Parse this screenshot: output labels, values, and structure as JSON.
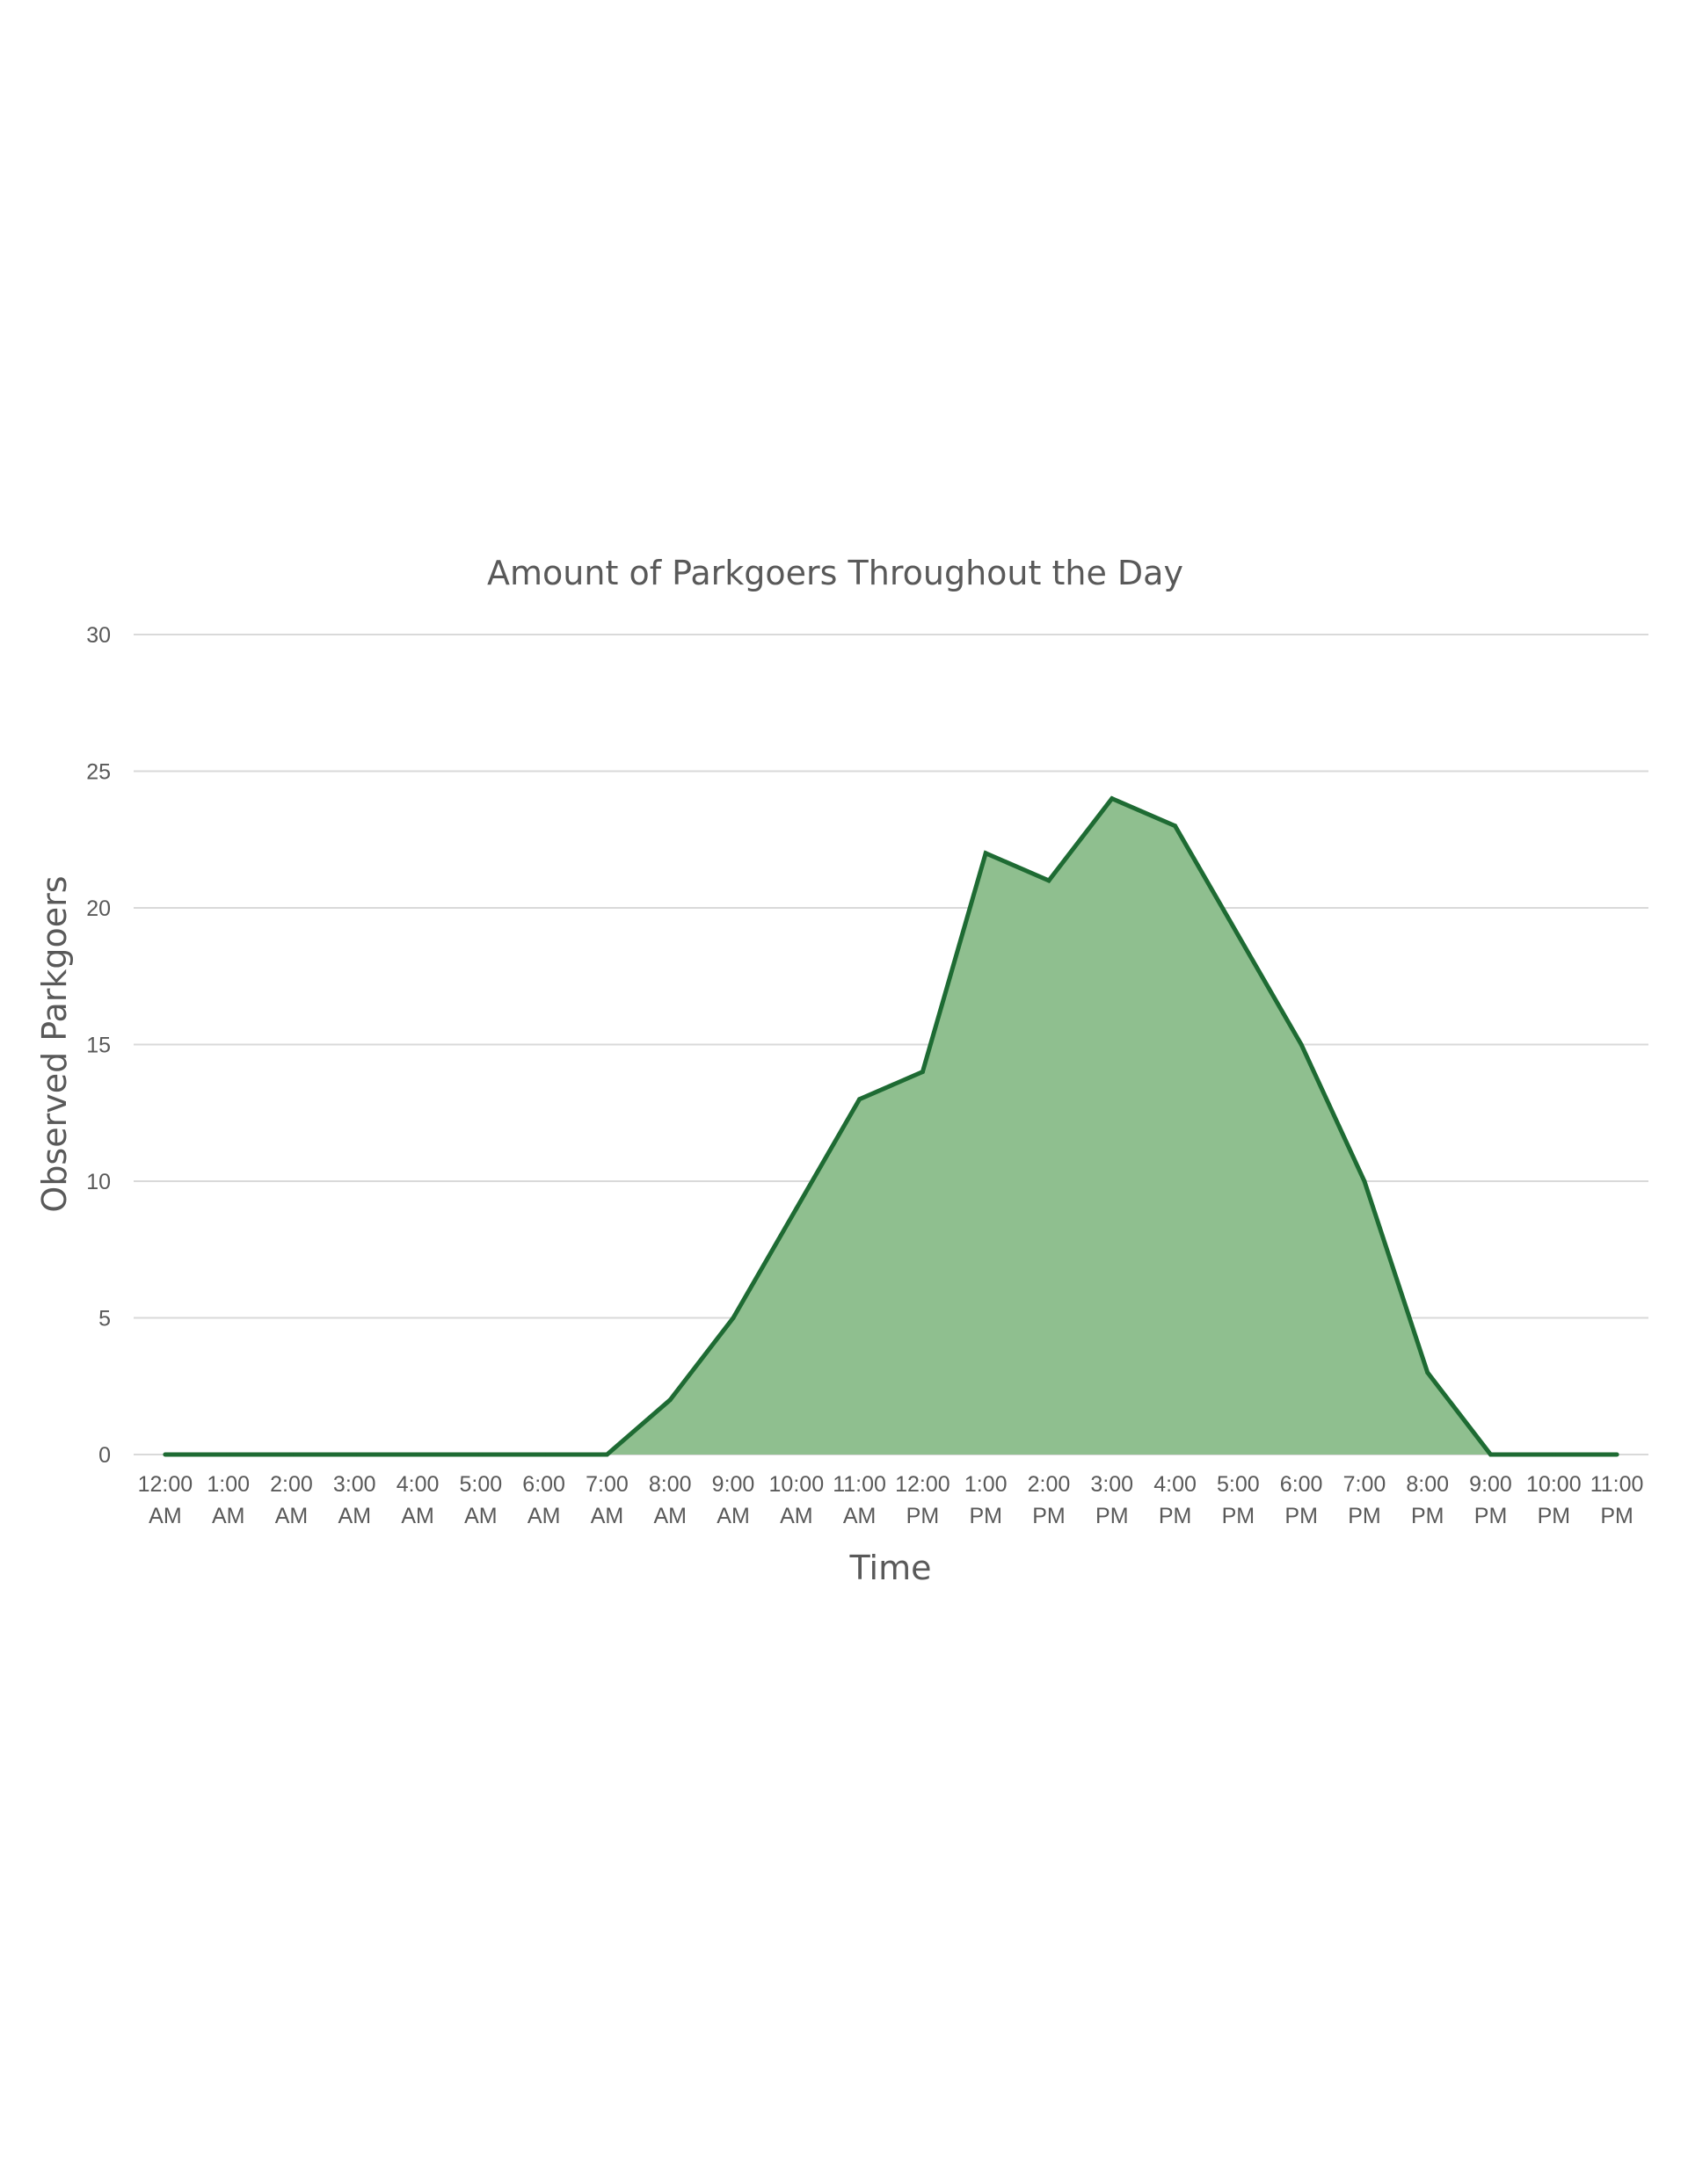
{
  "chart_data": {
    "type": "area",
    "title": "Amount of Parkgoers Throughout the Day",
    "xlabel": "Time",
    "ylabel": "Observed Parkgoers",
    "categories": [
      [
        "12:00",
        "AM"
      ],
      [
        "1:00",
        "AM"
      ],
      [
        "2:00",
        "AM"
      ],
      [
        "3:00",
        "AM"
      ],
      [
        "4:00",
        "AM"
      ],
      [
        "5:00",
        "AM"
      ],
      [
        "6:00",
        "AM"
      ],
      [
        "7:00",
        "AM"
      ],
      [
        "8:00",
        "AM"
      ],
      [
        "9:00",
        "AM"
      ],
      [
        "10:00",
        "AM"
      ],
      [
        "11:00",
        "AM"
      ],
      [
        "12:00",
        "PM"
      ],
      [
        "1:00",
        "PM"
      ],
      [
        "2:00",
        "PM"
      ],
      [
        "3:00",
        "PM"
      ],
      [
        "4:00",
        "PM"
      ],
      [
        "5:00",
        "PM"
      ],
      [
        "6:00",
        "PM"
      ],
      [
        "7:00",
        "PM"
      ],
      [
        "8:00",
        "PM"
      ],
      [
        "9:00",
        "PM"
      ],
      [
        "10:00",
        "PM"
      ],
      [
        "11:00",
        "PM"
      ]
    ],
    "values": [
      0,
      0,
      0,
      0,
      0,
      0,
      0,
      0,
      2,
      5,
      9,
      13,
      14,
      22,
      21,
      24,
      23,
      19,
      15,
      10,
      3,
      0,
      0,
      0
    ],
    "ylim": [
      0,
      30
    ],
    "yticks": [
      "0",
      "5",
      "10",
      "15",
      "20",
      "25",
      "30"
    ],
    "grid": true,
    "legend": "none",
    "colors": {
      "line": "#1e6b33",
      "fill": "#8fbf8f",
      "grid": "#d9d9d9",
      "text": "#595959"
    }
  }
}
